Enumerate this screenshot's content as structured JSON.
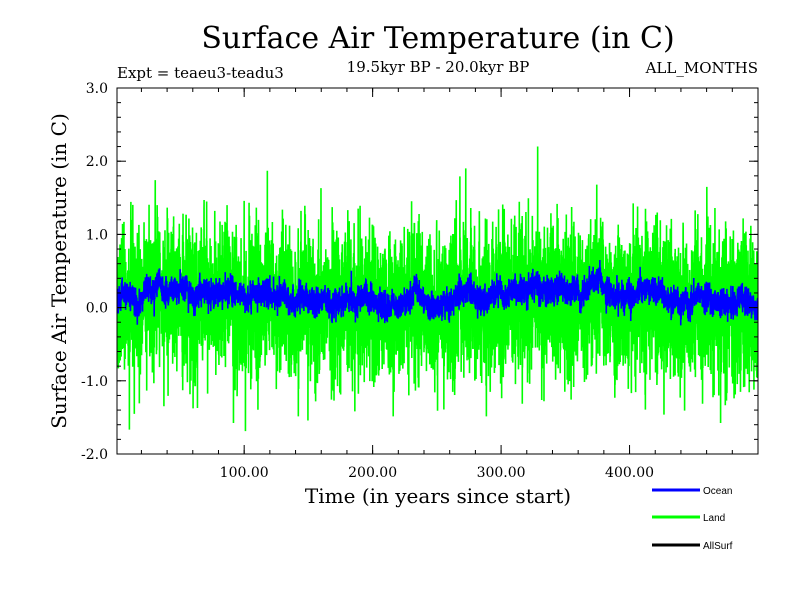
{
  "chart_data": {
    "type": "line",
    "title": "Surface Air Temperature (in C)",
    "subtitle_left": "Expt = teaeu3-teadu3",
    "subtitle_center": "19.5kyr BP - 20.0kyr BP",
    "subtitle_right": "ALL_MONTHS",
    "xlabel": "Time (in years since start)",
    "ylabel": "Surface Air Temperature (in C)",
    "xlim": [
      1,
      500
    ],
    "ylim": [
      -2.0,
      3.0
    ],
    "x_ticks": [
      100,
      200,
      300,
      400
    ],
    "x_tick_labels": [
      "100.00",
      "200.00",
      "300.00",
      "400.00"
    ],
    "y_ticks": [
      -2.0,
      -1.0,
      0.0,
      1.0,
      2.0,
      3.0
    ],
    "y_tick_labels": [
      "-2.0",
      "-1.0",
      "0.0",
      "1.0",
      "2.0",
      "3.0"
    ],
    "series_summary": [
      {
        "name": "Land",
        "color": "#00ff00",
        "mean": 0.05,
        "min": -1.8,
        "max": 2.2,
        "n_points": 6000
      },
      {
        "name": "Ocean",
        "color": "#0000ff",
        "mean": 0.15,
        "min": -0.45,
        "max": 0.65,
        "n_points": 6000
      },
      {
        "name": "AllSurf",
        "color": "#000000",
        "mean": 0.1,
        "min": -0.6,
        "max": 0.8,
        "n_points": 6000
      }
    ],
    "legend": [
      {
        "label": "Ocean",
        "color": "#0000ff"
      },
      {
        "label": "Land",
        "color": "#00ff00"
      },
      {
        "label": "AllSurf",
        "color": "#000000"
      }
    ],
    "legend_position": "bottom-right"
  }
}
